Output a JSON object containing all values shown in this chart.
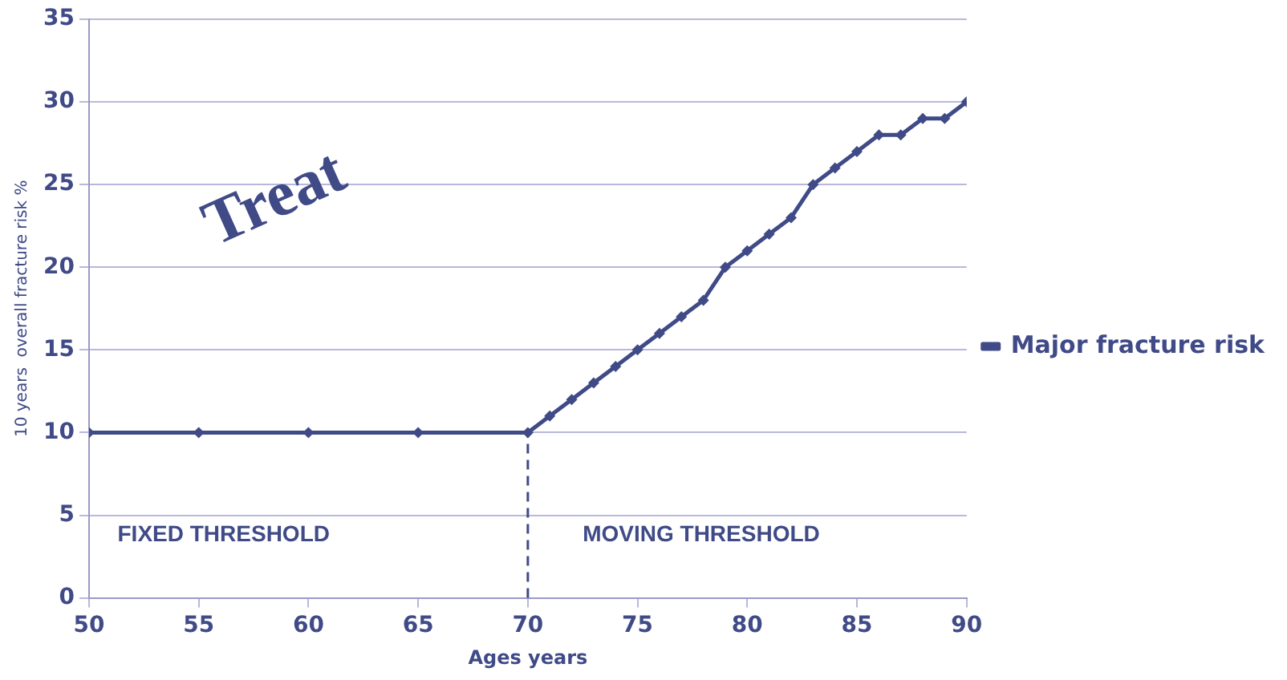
{
  "chart_data": {
    "type": "line",
    "xlabel": "Ages years",
    "ylabel": "10 years  overall fracture risk %",
    "x": [
      50,
      55,
      60,
      65,
      70,
      71,
      72,
      73,
      74,
      75,
      76,
      77,
      78,
      79,
      80,
      81,
      82,
      83,
      84,
      85,
      86,
      87,
      88,
      89,
      90
    ],
    "series": [
      {
        "name": "Major fracture risk",
        "color": "#3f4a87",
        "values": [
          10,
          10,
          10,
          10,
          10,
          11,
          12,
          13,
          14,
          15,
          16,
          17,
          18,
          20,
          21,
          22,
          23,
          25,
          26,
          27,
          28,
          28,
          29,
          29,
          30
        ]
      }
    ],
    "xlim": [
      50,
      90
    ],
    "xticks": [
      50,
      55,
      60,
      65,
      70,
      75,
      80,
      85,
      90
    ],
    "ylim": [
      0,
      35
    ],
    "yticks": [
      0,
      5,
      10,
      15,
      20,
      25,
      30,
      35
    ],
    "grid": "y",
    "legend": "right",
    "marker": "diamond",
    "line_style": "solid",
    "ref_lines": [
      {
        "axis": "x",
        "value": 70,
        "color": "#3f4a87",
        "line_style": "dashed"
      }
    ],
    "annotations": [
      "Treat",
      "FIXED THRESHOLD",
      "MOVING THRESHOLD"
    ]
  }
}
